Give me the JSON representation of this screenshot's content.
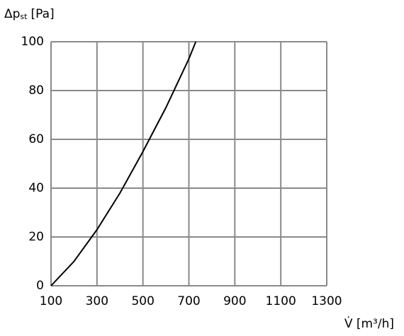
{
  "chart_data": {
    "type": "line",
    "ylabel": {
      "main": "Δp",
      "sub": "st",
      "unit": "[Pa]"
    },
    "xlabel": "V̇ [m³/h]",
    "x": [
      100,
      200,
      300,
      400,
      500,
      600,
      700,
      730
    ],
    "values": [
      0,
      10,
      23,
      38,
      55,
      73,
      93,
      100
    ],
    "color": "#000000",
    "xlim": [
      100,
      1300
    ],
    "xticks": [
      100,
      300,
      500,
      700,
      900,
      1100,
      1300
    ],
    "ylim": [
      0,
      100
    ],
    "yticks": [
      0,
      20,
      40,
      60,
      80,
      100
    ],
    "grid": true
  }
}
